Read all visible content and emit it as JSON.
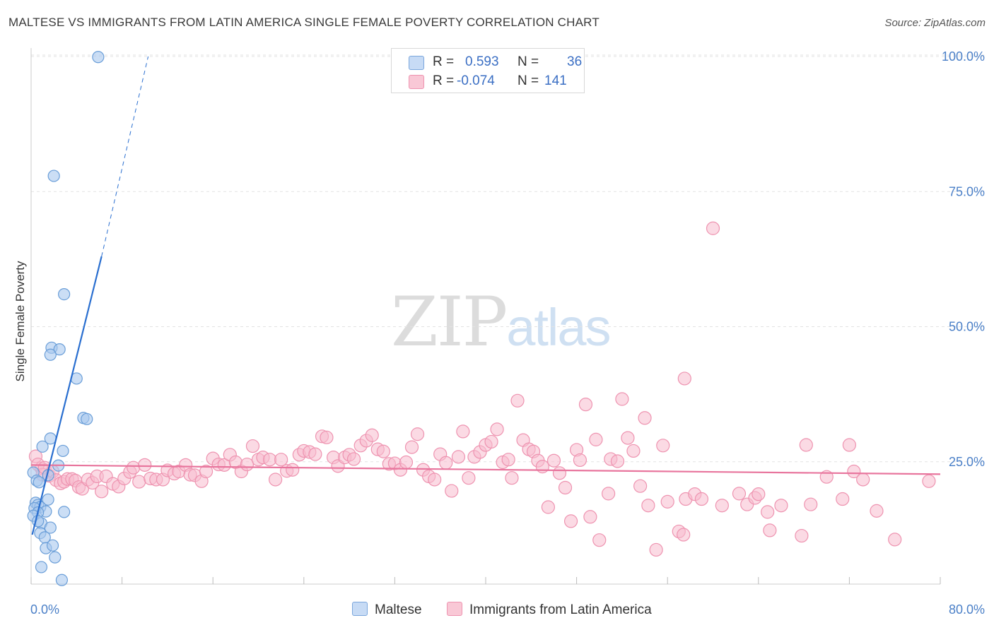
{
  "title": "MALTESE VS IMMIGRANTS FROM LATIN AMERICA SINGLE FEMALE POVERTY CORRELATION CHART",
  "source": "Source: ZipAtlas.com",
  "watermark": {
    "zip": "ZIP",
    "atlas": "atlas"
  },
  "legend": {
    "maltese": {
      "r_label": "R =",
      "r_value": "0.593",
      "n_label": "N =",
      "n_value": "36"
    },
    "latin": {
      "r_label": "R =",
      "r_value": "-0.074",
      "n_label": "N =",
      "n_value": "141"
    }
  },
  "bottom_legend": {
    "maltese": "Maltese",
    "latin": "Immigrants from Latin America"
  },
  "colors": {
    "maltese_fill": "#a9c8ef",
    "maltese_stroke": "#6a9ed8",
    "maltese_line": "#2a6fd0",
    "latin_fill": "#f7bccd",
    "latin_stroke": "#ee93b0",
    "latin_line": "#e8759d",
    "tick_text": "#4a7fc7",
    "grid": "#e3e3e3"
  },
  "chart_data": {
    "type": "scatter",
    "title": "MALTESE VS IMMIGRANTS FROM LATIN AMERICA SINGLE FEMALE POVERTY CORRELATION CHART",
    "xlabel": "",
    "ylabel": "Single Female Poverty",
    "xlim": [
      0,
      80
    ],
    "ylim": [
      0,
      102
    ],
    "x_tick_labels": {
      "left": "0.0%",
      "right": "80.0%"
    },
    "y_ticks": [
      {
        "value": 25,
        "label": "25.0%"
      },
      {
        "value": 50,
        "label": "50.0%"
      },
      {
        "value": 75,
        "label": "75.0%"
      },
      {
        "value": 100,
        "label": "100.0%"
      }
    ],
    "series": [
      {
        "name": "Maltese",
        "points": [
          [
            5.9,
            99.9
          ],
          [
            2.0,
            77.9
          ],
          [
            2.9,
            56.0
          ],
          [
            1.8,
            46.1
          ],
          [
            2.5,
            45.8
          ],
          [
            1.7,
            44.8
          ],
          [
            4.0,
            40.4
          ],
          [
            4.6,
            33.1
          ],
          [
            4.9,
            32.9
          ],
          [
            1.7,
            29.3
          ],
          [
            1.0,
            27.8
          ],
          [
            2.8,
            27.0
          ],
          [
            2.4,
            24.3
          ],
          [
            0.2,
            23.0
          ],
          [
            1.5,
            22.5
          ],
          [
            0.5,
            21.5
          ],
          [
            0.7,
            21.2
          ],
          [
            1.5,
            18.0
          ],
          [
            0.4,
            17.4
          ],
          [
            0.6,
            17.0
          ],
          [
            0.8,
            16.6
          ],
          [
            0.3,
            16.4
          ],
          [
            1.3,
            15.8
          ],
          [
            2.9,
            15.7
          ],
          [
            0.6,
            15.6
          ],
          [
            0.2,
            15.0
          ],
          [
            0.9,
            13.6
          ],
          [
            1.7,
            12.8
          ],
          [
            0.8,
            11.8
          ],
          [
            1.2,
            11.0
          ],
          [
            1.3,
            9.0
          ],
          [
            1.9,
            9.5
          ],
          [
            2.1,
            7.3
          ],
          [
            0.9,
            5.5
          ],
          [
            2.7,
            3.1
          ],
          [
            0.6,
            14.0
          ]
        ],
        "trend": {
          "x": [
            0.1,
            6.2
          ],
          "y": [
            11.5,
            63.0
          ],
          "dashed_to": [
            10.3,
            100.0
          ]
        }
      },
      {
        "name": "Immigrants from Latin America",
        "points": [
          [
            0.4,
            26.0
          ],
          [
            0.9,
            23.8
          ],
          [
            0.6,
            24.5
          ],
          [
            1.0,
            22.6
          ],
          [
            1.2,
            23.9
          ],
          [
            1.6,
            22.4
          ],
          [
            1.9,
            23.2
          ],
          [
            2.2,
            21.6
          ],
          [
            2.6,
            21.0
          ],
          [
            2.9,
            21.3
          ],
          [
            3.2,
            21.8
          ],
          [
            3.6,
            21.8
          ],
          [
            3.9,
            21.5
          ],
          [
            4.2,
            20.3
          ],
          [
            4.5,
            20.0
          ],
          [
            5.0,
            21.7
          ],
          [
            5.4,
            21.1
          ],
          [
            5.8,
            22.3
          ],
          [
            6.2,
            19.5
          ],
          [
            6.6,
            22.3
          ],
          [
            7.2,
            20.9
          ],
          [
            7.7,
            20.4
          ],
          [
            8.2,
            21.9
          ],
          [
            8.7,
            23.1
          ],
          [
            9.0,
            23.9
          ],
          [
            9.5,
            21.3
          ],
          [
            10.0,
            24.4
          ],
          [
            10.5,
            21.9
          ],
          [
            11.0,
            21.7
          ],
          [
            11.6,
            21.7
          ],
          [
            12.0,
            23.4
          ],
          [
            12.6,
            22.8
          ],
          [
            13.0,
            23.2
          ],
          [
            13.6,
            24.4
          ],
          [
            14.0,
            22.6
          ],
          [
            14.4,
            22.5
          ],
          [
            15.0,
            21.4
          ],
          [
            15.4,
            23.2
          ],
          [
            16.0,
            25.6
          ],
          [
            16.5,
            24.5
          ],
          [
            17.0,
            24.4
          ],
          [
            17.5,
            26.3
          ],
          [
            18.0,
            24.9
          ],
          [
            18.5,
            23.2
          ],
          [
            19.0,
            24.5
          ],
          [
            19.5,
            27.9
          ],
          [
            20.0,
            25.4
          ],
          [
            20.4,
            25.8
          ],
          [
            21.0,
            25.4
          ],
          [
            21.5,
            21.7
          ],
          [
            22.0,
            25.4
          ],
          [
            22.5,
            23.3
          ],
          [
            23.0,
            23.5
          ],
          [
            23.6,
            26.3
          ],
          [
            24.0,
            27.0
          ],
          [
            24.5,
            26.8
          ],
          [
            25.0,
            26.4
          ],
          [
            25.6,
            29.7
          ],
          [
            26.0,
            29.5
          ],
          [
            26.6,
            25.8
          ],
          [
            27.0,
            24.2
          ],
          [
            27.6,
            25.8
          ],
          [
            28.0,
            26.3
          ],
          [
            28.4,
            25.5
          ],
          [
            29.0,
            28.0
          ],
          [
            29.5,
            28.9
          ],
          [
            30.0,
            29.9
          ],
          [
            30.5,
            27.3
          ],
          [
            31.0,
            26.9
          ],
          [
            31.5,
            24.6
          ],
          [
            32.0,
            24.7
          ],
          [
            32.5,
            23.5
          ],
          [
            33.0,
            24.9
          ],
          [
            33.5,
            27.7
          ],
          [
            34.0,
            30.1
          ],
          [
            34.5,
            23.5
          ],
          [
            35.0,
            22.3
          ],
          [
            35.5,
            21.7
          ],
          [
            36.0,
            26.4
          ],
          [
            36.5,
            24.8
          ],
          [
            37.0,
            19.6
          ],
          [
            37.6,
            25.9
          ],
          [
            38.0,
            30.6
          ],
          [
            38.5,
            22.0
          ],
          [
            39.0,
            25.9
          ],
          [
            39.5,
            26.8
          ],
          [
            40.0,
            28.1
          ],
          [
            40.5,
            28.7
          ],
          [
            41.0,
            31.0
          ],
          [
            41.5,
            24.9
          ],
          [
            42.0,
            25.4
          ],
          [
            42.3,
            22.0
          ],
          [
            42.8,
            36.3
          ],
          [
            43.3,
            29.0
          ],
          [
            43.8,
            27.3
          ],
          [
            44.2,
            26.9
          ],
          [
            44.6,
            25.2
          ],
          [
            45.0,
            24.1
          ],
          [
            45.5,
            16.6
          ],
          [
            46.0,
            25.2
          ],
          [
            46.5,
            22.9
          ],
          [
            47.0,
            20.2
          ],
          [
            47.5,
            14.0
          ],
          [
            48.0,
            27.2
          ],
          [
            48.3,
            25.3
          ],
          [
            48.8,
            35.6
          ],
          [
            49.2,
            14.8
          ],
          [
            49.7,
            29.1
          ],
          [
            50.0,
            10.5
          ],
          [
            50.8,
            19.1
          ],
          [
            51.0,
            25.5
          ],
          [
            51.6,
            25.1
          ],
          [
            52.0,
            36.6
          ],
          [
            52.5,
            29.4
          ],
          [
            53.0,
            27.0
          ],
          [
            53.6,
            20.5
          ],
          [
            54.0,
            33.1
          ],
          [
            54.3,
            16.9
          ],
          [
            55.0,
            8.7
          ],
          [
            55.6,
            28.0
          ],
          [
            56.0,
            17.6
          ],
          [
            57.0,
            12.1
          ],
          [
            57.4,
            11.5
          ],
          [
            57.6,
            18.1
          ],
          [
            58.4,
            19.0
          ],
          [
            59.0,
            18.1
          ],
          [
            60.0,
            68.2
          ],
          [
            60.8,
            16.9
          ],
          [
            57.5,
            40.4
          ],
          [
            62.3,
            19.1
          ],
          [
            63.0,
            17.1
          ],
          [
            63.7,
            18.3
          ],
          [
            64.8,
            15.7
          ],
          [
            66.0,
            16.9
          ],
          [
            65.0,
            12.3
          ],
          [
            67.8,
            11.3
          ],
          [
            68.2,
            28.1
          ],
          [
            70.0,
            22.2
          ],
          [
            71.4,
            18.1
          ],
          [
            72.0,
            28.1
          ],
          [
            72.4,
            23.2
          ],
          [
            73.2,
            21.7
          ],
          [
            74.4,
            15.9
          ],
          [
            76.0,
            10.6
          ],
          [
            79.0,
            21.4
          ],
          [
            68.6,
            17.1
          ],
          [
            64.0,
            19.0
          ]
        ],
        "trend": {
          "x": [
            0,
            80
          ],
          "y": [
            24.4,
            22.7
          ]
        }
      }
    ]
  }
}
